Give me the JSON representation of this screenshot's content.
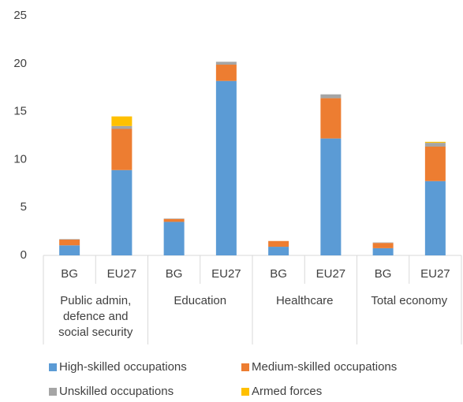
{
  "chart_data": {
    "type": "stacked_bar",
    "categories": [
      "BG",
      "EU27",
      "BG",
      "EU27",
      "BG",
      "EU27",
      "BG",
      "EU27"
    ],
    "groups": [
      {
        "lines": [
          "Public admin,",
          "defence and",
          "social security"
        ]
      },
      {
        "lines": [
          "Education"
        ]
      },
      {
        "lines": [
          "Healthcare"
        ]
      },
      {
        "lines": [
          "Total economy"
        ]
      }
    ],
    "series": [
      {
        "name": "High-skilled occupations",
        "color": "#5b9bd5",
        "values": [
          1.05,
          8.9,
          3.5,
          18.2,
          0.9,
          12.2,
          0.75,
          7.75
        ]
      },
      {
        "name": "Medium-skilled occupations",
        "color": "#ed7d31",
        "values": [
          0.6,
          4.3,
          0.3,
          1.7,
          0.6,
          4.2,
          0.55,
          3.6
        ]
      },
      {
        "name": "Unskilled occupations",
        "color": "#a5a5a5",
        "values": [
          0.05,
          0.3,
          0.05,
          0.3,
          0.0,
          0.4,
          0.05,
          0.4
        ]
      },
      {
        "name": "Armed forces",
        "color": "#ffc000",
        "values": [
          0.0,
          1.0,
          0.0,
          0.0,
          0.0,
          0.0,
          0.0,
          0.1
        ]
      }
    ],
    "ylim": [
      0,
      25
    ],
    "yticks": [
      0,
      5,
      10,
      15,
      20,
      25
    ],
    "grid": false,
    "legend": "bottom"
  }
}
